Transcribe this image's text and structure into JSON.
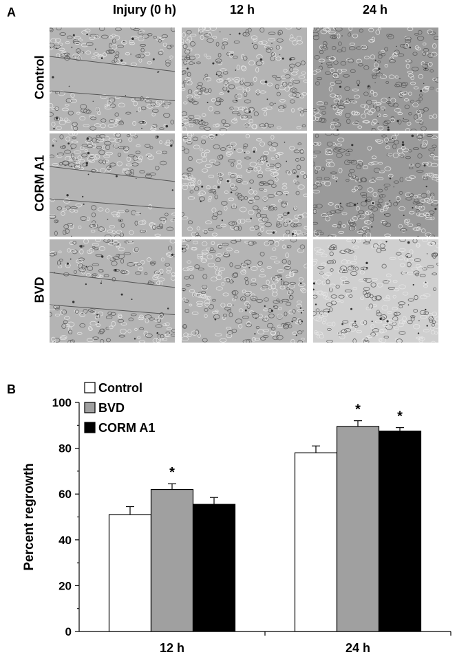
{
  "panel_a": {
    "letter": "A",
    "columns": [
      "Injury (0 h)",
      "12 h",
      "24 h"
    ],
    "rows": [
      "Control",
      "CORM A1",
      "BVD"
    ]
  },
  "panel_b": {
    "letter": "B"
  },
  "chart_data": {
    "type": "bar",
    "categories": [
      "12 h",
      "24 h"
    ],
    "ylabel": "Percent regrowth",
    "xlabel": "",
    "title": "",
    "ylim": [
      0,
      100
    ],
    "yticks": [
      0,
      20,
      40,
      60,
      80,
      100
    ],
    "legend_position": "top-left",
    "series": [
      {
        "name": "Control",
        "color": "#ffffff",
        "values": [
          51,
          78
        ],
        "errors": [
          3.5,
          3
        ],
        "significant": [
          false,
          false
        ]
      },
      {
        "name": "BVD",
        "color": "#a0a0a0",
        "values": [
          62,
          89.5
        ],
        "errors": [
          2.5,
          2.5
        ],
        "significant": [
          true,
          true
        ]
      },
      {
        "name": "CORM A1",
        "color": "#000000",
        "values": [
          55.5,
          87.5
        ],
        "errors": [
          3,
          1.5
        ],
        "significant": [
          false,
          true
        ]
      }
    ],
    "significance_marker": "*"
  }
}
